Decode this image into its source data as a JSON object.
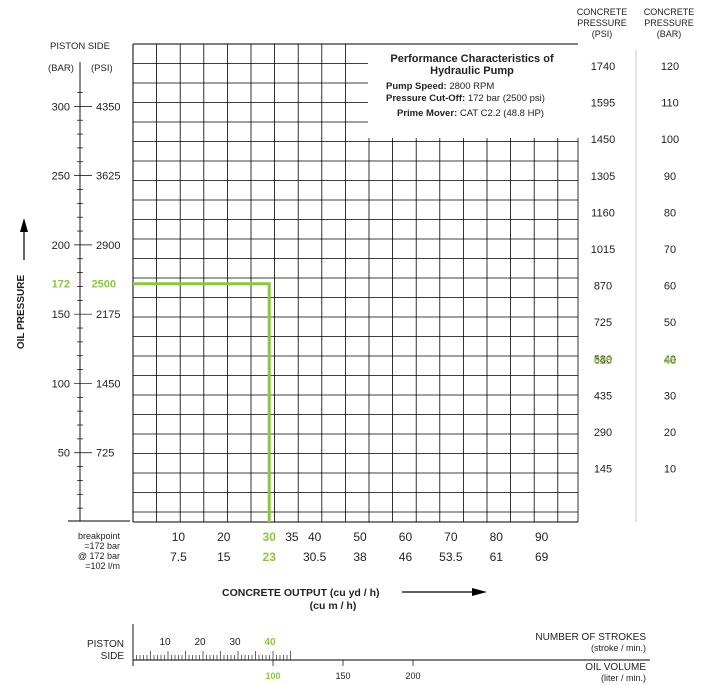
{
  "chart_data": {
    "type": "line",
    "title": "Performance Characteristics of Hydraulic Pump",
    "info": [
      {
        "label": "Pump Speed:",
        "value": "2800 RPM"
      },
      {
        "label": "Pressure Cut-Off:",
        "value": "172 bar (2500 psi)"
      },
      {
        "label": "Prime Mover:",
        "value": "CAT C2.2 (48.8 HP)"
      }
    ],
    "left_header": {
      "title": "PISTON SIDE",
      "unit_bar": "(BAR)",
      "unit_psi": "(PSI)"
    },
    "y_axis_label": "OIL PRESSURE",
    "left_ticks": [
      {
        "bar": "300",
        "psi": "4350",
        "v": 300
      },
      {
        "bar": "250",
        "psi": "3625",
        "v": 250
      },
      {
        "bar": "200",
        "psi": "2900",
        "v": 200
      },
      {
        "bar": "150",
        "psi": "2175",
        "v": 150
      },
      {
        "bar": "100",
        "psi": "1450",
        "v": 100
      },
      {
        "bar": "50",
        "psi": "725",
        "v": 50
      }
    ],
    "highlight_pressure": {
      "bar": "172",
      "psi": "2500",
      "v": 172
    },
    "right_header_psi": [
      "CONCRETE",
      "PRESSURE",
      "(PSI)"
    ],
    "right_header_bar": [
      "CONCRETE",
      "PRESSURE",
      "(BAR)"
    ],
    "right_ticks": [
      {
        "psi": "1740",
        "bar": "120",
        "v": 120
      },
      {
        "psi": "1595",
        "bar": "110",
        "v": 110
      },
      {
        "psi": "1450",
        "bar": "100",
        "v": 100
      },
      {
        "psi": "1305",
        "bar": "90",
        "v": 90
      },
      {
        "psi": "1160",
        "bar": "80",
        "v": 80
      },
      {
        "psi": "1015",
        "bar": "70",
        "v": 70
      },
      {
        "psi": "870",
        "bar": "60",
        "v": 60
      },
      {
        "psi": "725",
        "bar": "50",
        "v": 50
      },
      {
        "psi": "580",
        "bar": "40",
        "v": 40
      },
      {
        "psi": "435",
        "bar": "30",
        "v": 30
      },
      {
        "psi": "290",
        "bar": "20",
        "v": 20
      },
      {
        "psi": "145",
        "bar": "10",
        "v": 10
      }
    ],
    "highlight_concrete": {
      "psi": "625",
      "bar": "43"
    },
    "x_ticks_yd": [
      {
        "label": "10",
        "v": 10
      },
      {
        "label": "20",
        "v": 20
      },
      {
        "label": "35",
        "v": 35
      },
      {
        "label": "40",
        "v": 40
      },
      {
        "label": "50",
        "v": 50
      },
      {
        "label": "60",
        "v": 60
      },
      {
        "label": "70",
        "v": 70
      },
      {
        "label": "80",
        "v": 80
      },
      {
        "label": "90",
        "v": 90
      }
    ],
    "x_ticks_m": [
      {
        "label": "7.5",
        "v": 10
      },
      {
        "label": "15",
        "v": 20
      },
      {
        "label": "30.5",
        "v": 40
      },
      {
        "label": "38",
        "v": 50
      },
      {
        "label": "46",
        "v": 60
      },
      {
        "label": "53.5",
        "v": 70
      },
      {
        "label": "61",
        "v": 80
      },
      {
        "label": "69",
        "v": 90
      }
    ],
    "highlight_output": {
      "yd": "30",
      "m": "23",
      "v": 30
    },
    "breakpoint_note": [
      "breakpoint",
      "=172 bar",
      "@ 172 bar",
      "=102 l/m"
    ],
    "x_axis_label_1": "CONCRETE OUTPUT (cu yd / h)",
    "x_axis_label_2": "(cu m / h)",
    "series": [
      {
        "x": [
          0,
          30,
          30
        ],
        "y": [
          172,
          172,
          0
        ],
        "color": "#8cc63f"
      }
    ],
    "x_range": [
      0,
      98
    ],
    "y_range_bar": [
      0,
      345
    ],
    "grid": true,
    "bottom": {
      "piston_side": [
        "PISTON",
        "SIDE"
      ],
      "strokes_label": "NUMBER OF STROKES",
      "strokes_unit": "(stroke / min.)",
      "oil_label": "OIL VOLUME",
      "oil_unit": "(liter / min.)",
      "stroke_ticks": [
        {
          "label": "10",
          "v": 10
        },
        {
          "label": "20",
          "v": 20
        },
        {
          "label": "30",
          "v": 30
        },
        {
          "label": "40",
          "v": 40,
          "highlight": true
        }
      ],
      "oil_ticks": [
        {
          "label": "100",
          "v": 100,
          "highlight": true
        },
        {
          "label": "150",
          "v": 150
        },
        {
          "label": "200",
          "v": 200
        }
      ]
    }
  }
}
